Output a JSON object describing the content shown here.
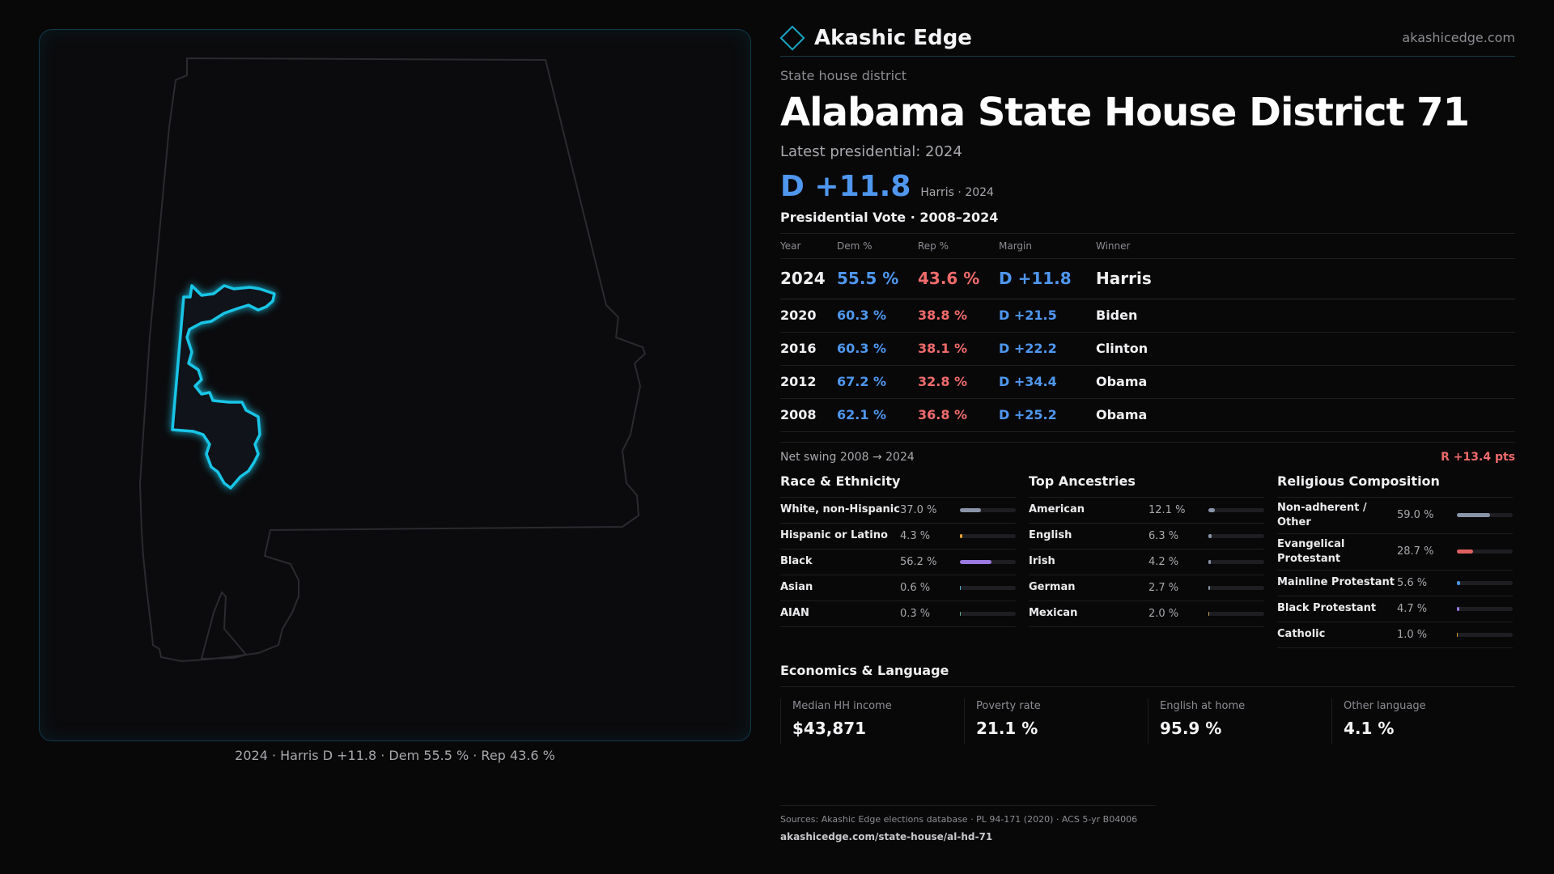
{
  "map": {
    "caption": "2024 · Harris D +11.8 · Dem 55.5 % · Rep 43.6 %"
  },
  "header": {
    "brand": "Akashic Edge",
    "site": "akashicedge.com"
  },
  "district": {
    "kicker": "State house district",
    "title": "Alabama State House District 71",
    "latest_label": "Latest presidential: 2024",
    "margin_big": "D +11.8",
    "margin_sub": "Harris · 2024"
  },
  "vote_table": {
    "title": "Presidential Vote · 2008–2024",
    "columns": [
      "Year",
      "Dem %",
      "Rep %",
      "Margin",
      "Winner"
    ],
    "rows": [
      {
        "year": "2024",
        "dem": "55.5 %",
        "rep": "43.6 %",
        "margin": "D +11.8",
        "winner": "Harris"
      },
      {
        "year": "2020",
        "dem": "60.3 %",
        "rep": "38.8 %",
        "margin": "D +21.5",
        "winner": "Biden"
      },
      {
        "year": "2016",
        "dem": "60.3 %",
        "rep": "38.1 %",
        "margin": "D +22.2",
        "winner": "Clinton"
      },
      {
        "year": "2012",
        "dem": "67.2 %",
        "rep": "32.8 %",
        "margin": "D +34.4",
        "winner": "Obama"
      },
      {
        "year": "2008",
        "dem": "62.1 %",
        "rep": "36.8 %",
        "margin": "D +25.2",
        "winner": "Obama"
      }
    ]
  },
  "swing": {
    "label": "Net swing 2008 → 2024",
    "value": "R +13.4 pts"
  },
  "race": {
    "title": "Race & Ethnicity",
    "rows": [
      {
        "label": "White, non-Hispanic",
        "value": "37.0 %",
        "pct": 37.0,
        "color": "#8a94a8"
      },
      {
        "label": "Hispanic or Latino",
        "value": "4.3 %",
        "pct": 4.3,
        "color": "#e0a030"
      },
      {
        "label": "Black",
        "value": "56.2 %",
        "pct": 56.2,
        "color": "#9a7ae0"
      },
      {
        "label": "Asian",
        "value": "0.6 %",
        "pct": 0.6,
        "color": "#5ab0c8"
      },
      {
        "label": "AIAN",
        "value": "0.3 %",
        "pct": 0.3,
        "color": "#5ab08a"
      }
    ]
  },
  "ancestry": {
    "title": "Top Ancestries",
    "rows": [
      {
        "label": "American",
        "value": "12.1 %",
        "pct": 12.1,
        "color": "#8a94a8"
      },
      {
        "label": "English",
        "value": "6.3 %",
        "pct": 6.3,
        "color": "#8a94a8"
      },
      {
        "label": "Irish",
        "value": "4.2 %",
        "pct": 4.2,
        "color": "#8a94a8"
      },
      {
        "label": "German",
        "value": "2.7 %",
        "pct": 2.7,
        "color": "#8a94a8"
      },
      {
        "label": "Mexican",
        "value": "2.0 %",
        "pct": 2.0,
        "color": "#c8a060"
      }
    ]
  },
  "religion": {
    "title": "Religious Composition",
    "rows": [
      {
        "label": "Non-adherent / Other",
        "value": "59.0 %",
        "pct": 59.0,
        "color": "#8a94a8"
      },
      {
        "label": "Evangelical Protestant",
        "value": "28.7 %",
        "pct": 28.7,
        "color": "#e06060"
      },
      {
        "label": "Mainline Protestant",
        "value": "5.6 %",
        "pct": 5.6,
        "color": "#4f97ee"
      },
      {
        "label": "Black Protestant",
        "value": "4.7 %",
        "pct": 4.7,
        "color": "#9a7ae0"
      },
      {
        "label": "Catholic",
        "value": "1.0 %",
        "pct": 1.0,
        "color": "#e0a030"
      }
    ]
  },
  "economics": {
    "title": "Economics & Language",
    "cells": [
      {
        "label": "Median HH income",
        "value": "$43,871"
      },
      {
        "label": "Poverty rate",
        "value": "21.1 %"
      },
      {
        "label": "English at home",
        "value": "95.9 %"
      },
      {
        "label": "Other language",
        "value": "4.1 %"
      }
    ]
  },
  "footer": {
    "sources": "Sources: Akashic Edge elections database · PL 94-171 (2020) · ACS 5-yr B04006",
    "url": "akashicedge.com/state-house/al-hd-71"
  }
}
